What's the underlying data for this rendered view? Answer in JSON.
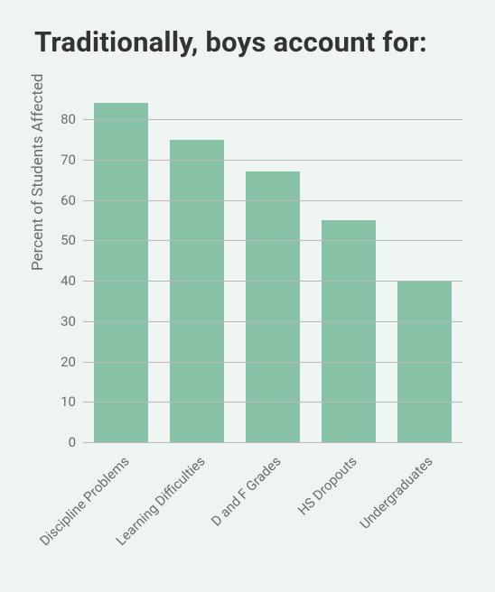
{
  "chart": {
    "type": "bar",
    "title": "Traditionally, boys account for:",
    "title_fontsize": 31,
    "title_color": "#333333",
    "title_weight": 700,
    "ylabel": "Percent of Students Affected",
    "ylabel_fontsize": 17,
    "label_color": "#6b6b6b",
    "background_color": "#eef4f1",
    "grid_color": "#b7b7b7",
    "bar_color": "#88c3a8",
    "ylim": [
      0,
      85
    ],
    "yticks": [
      0,
      10,
      20,
      30,
      40,
      50,
      60,
      70,
      80
    ],
    "ytick_fontsize": 15,
    "xtick_fontsize": 15,
    "xtick_rotation": -45,
    "bar_width_ratio": 0.72,
    "categories": [
      "Discipline Problems",
      "Learning Difficulties",
      "D and F Grades",
      "HS Dropouts",
      "Undergraduates"
    ],
    "values": [
      84,
      75,
      67,
      55,
      40
    ]
  }
}
